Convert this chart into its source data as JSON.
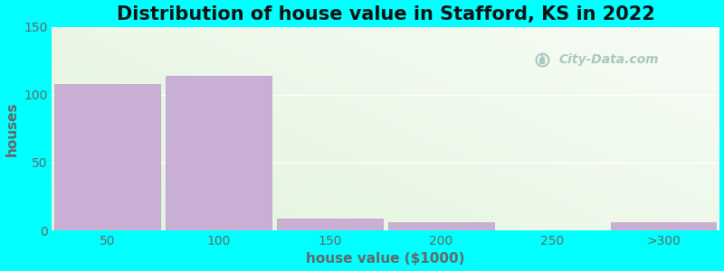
{
  "title": "Distribution of house value in Stafford, KS in 2022",
  "xlabel": "house value ($1000)",
  "ylabel": "houses",
  "bar_labels": [
    "50",
    "100",
    "150",
    "200",
    "250",
    ">300"
  ],
  "bar_values": [
    108,
    114,
    9,
    6,
    0,
    6
  ],
  "bar_color": "#c9afd4",
  "bar_edge_color": "#b8a0c8",
  "ylim": [
    0,
    150
  ],
  "yticks": [
    0,
    50,
    100,
    150
  ],
  "background_outer": "#00ffff",
  "background_inner": "#eaf5ea",
  "title_fontsize": 15,
  "axis_label_fontsize": 11,
  "tick_fontsize": 10,
  "title_fontweight": "bold",
  "watermark_text": "City-Data.com",
  "watermark_color": "#aac8c0",
  "grid_color": "#ffffff",
  "bar_width": 0.95,
  "label_color": "#666666"
}
